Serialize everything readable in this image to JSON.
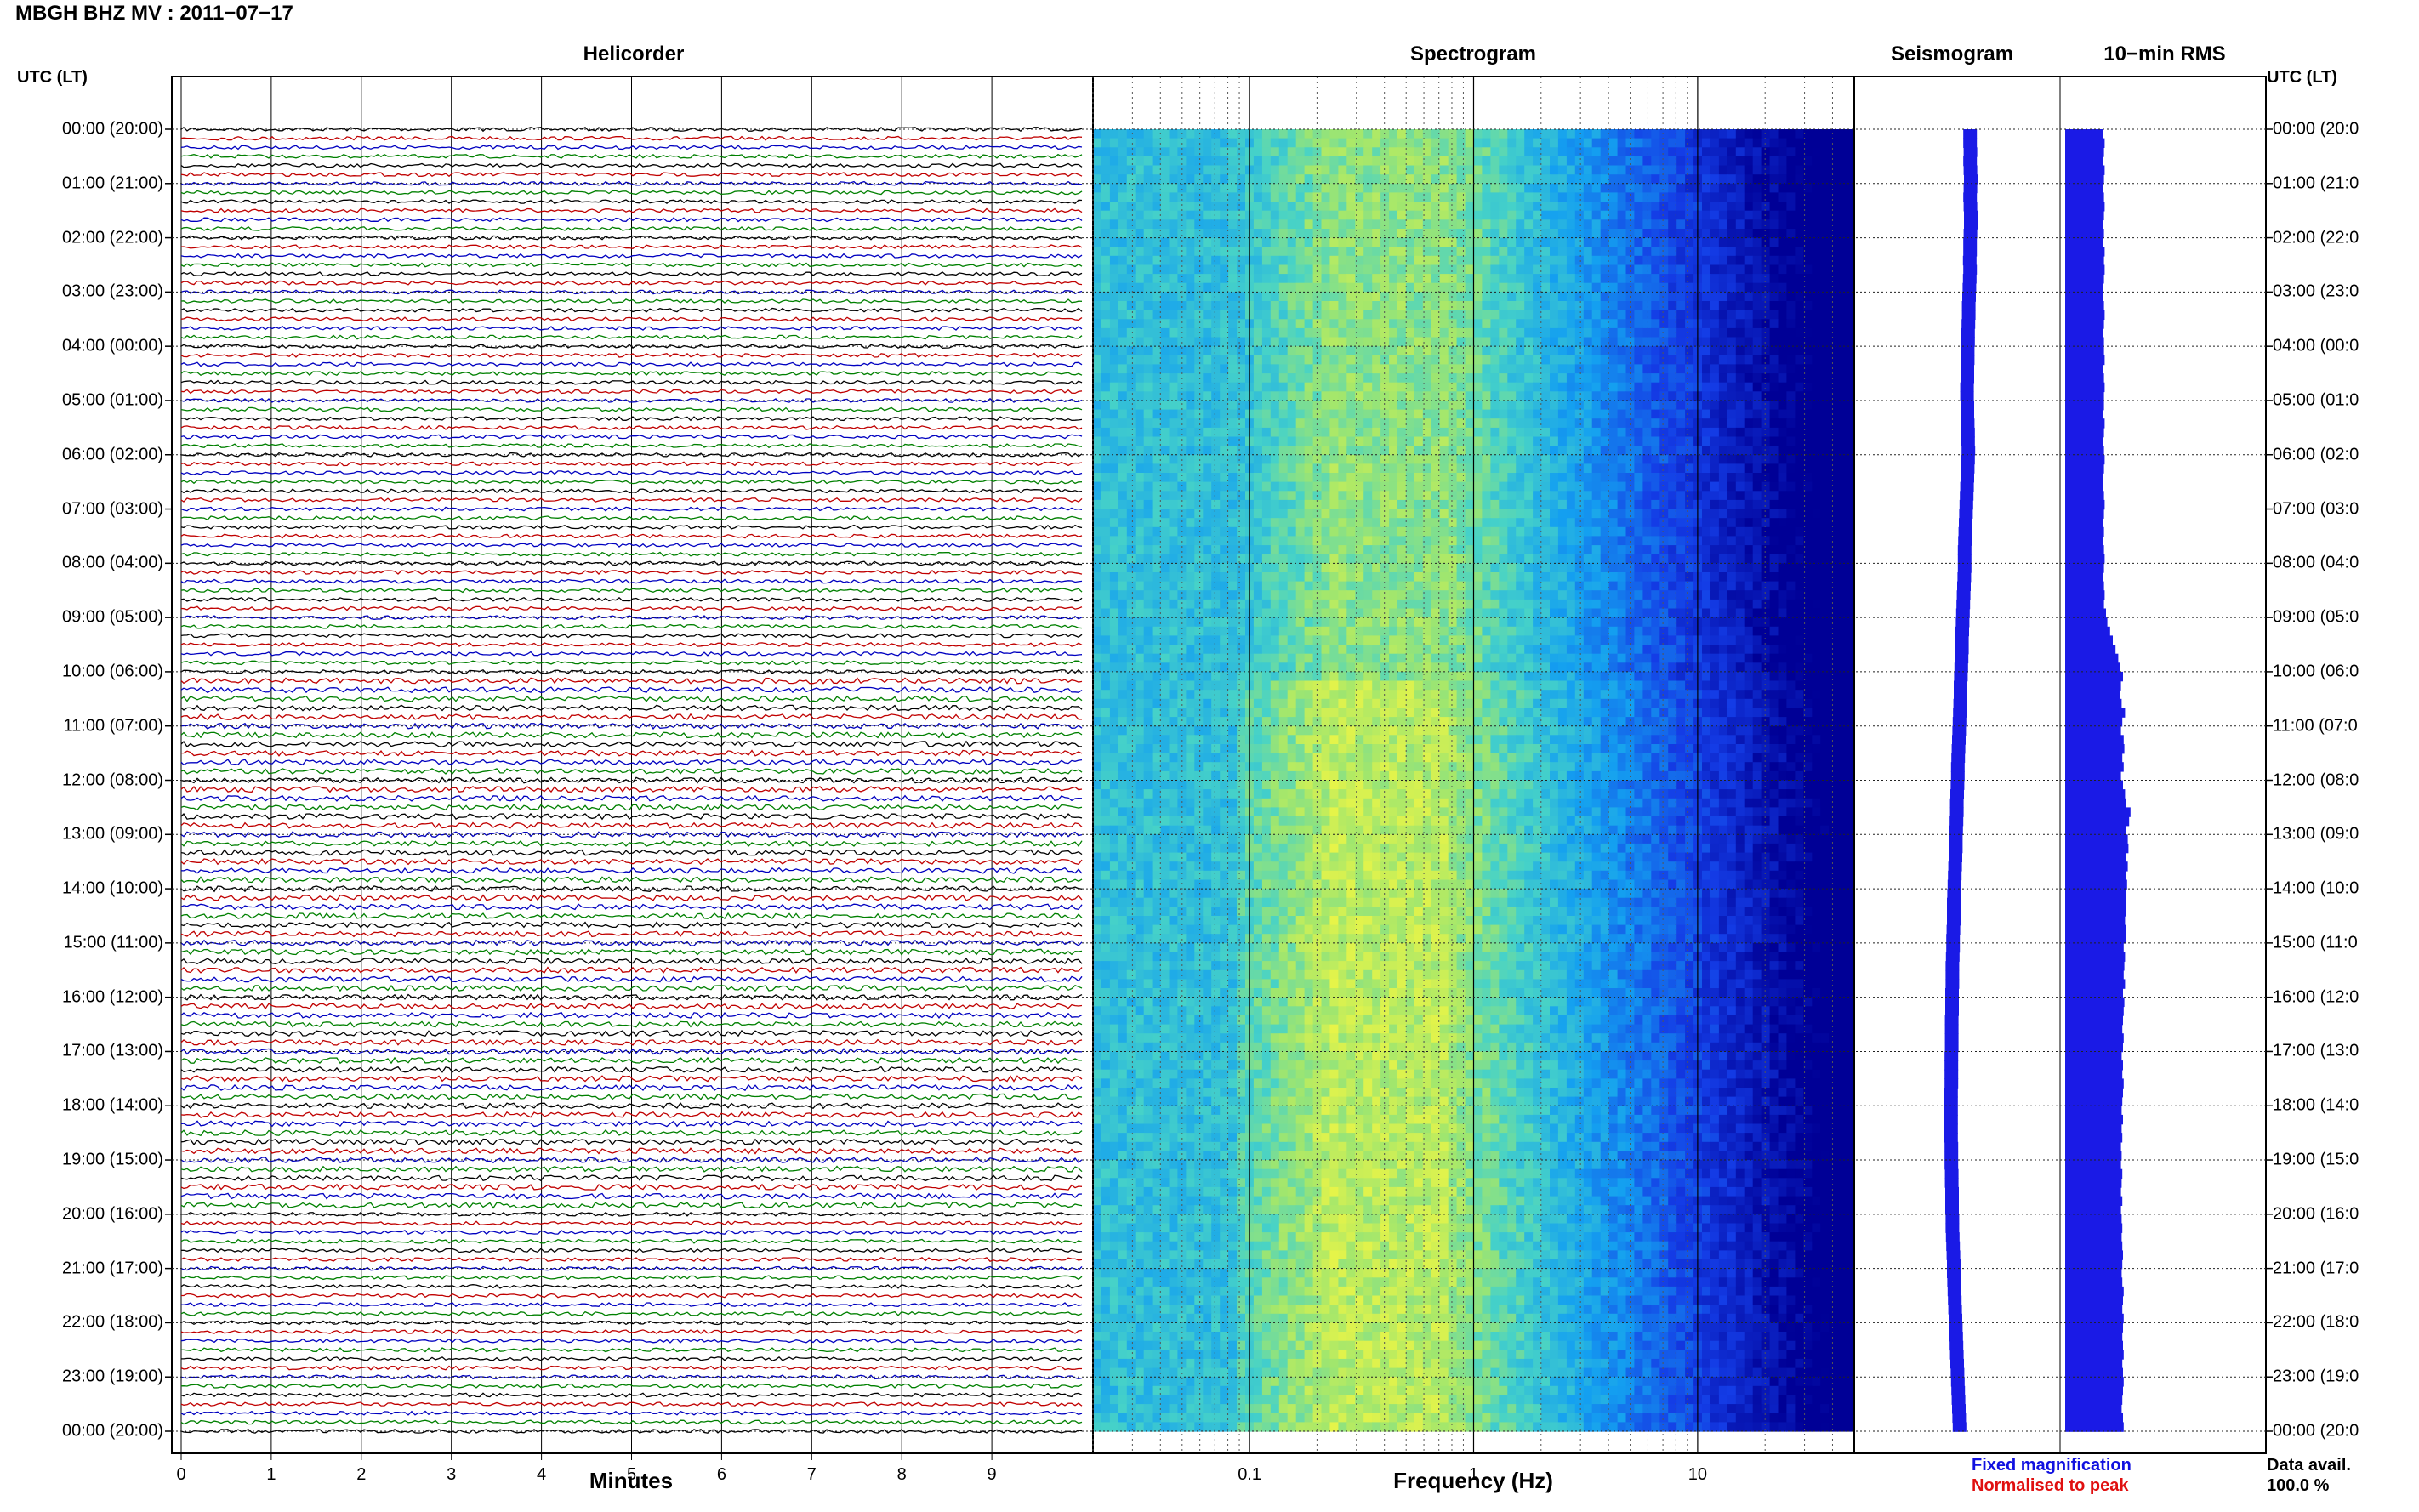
{
  "header": {
    "title": "MBGH BHZ MV : 2011−07−17"
  },
  "panels": {
    "helicorder": "Helicorder",
    "spectrogram": "Spectrogram",
    "seismogram": "Seismogram",
    "rms": "10−min RMS"
  },
  "time_axis": {
    "left_label": "UTC (LT)",
    "right_label": "UTC (LT)",
    "hours": [
      "00:00 (20:00)",
      "01:00 (21:00)",
      "02:00 (22:00)",
      "03:00 (23:00)",
      "04:00 (00:00)",
      "05:00 (01:00)",
      "06:00 (02:00)",
      "07:00 (03:00)",
      "08:00 (04:00)",
      "09:00 (05:00)",
      "10:00 (06:00)",
      "11:00 (07:00)",
      "12:00 (08:00)",
      "13:00 (09:00)",
      "14:00 (10:00)",
      "15:00 (11:00)",
      "16:00 (12:00)",
      "17:00 (13:00)",
      "18:00 (14:00)",
      "19:00 (15:00)",
      "20:00 (16:00)",
      "21:00 (17:00)",
      "22:00 (18:00)",
      "23:00 (19:00)",
      "00:00 (20:00)"
    ],
    "right_hours": [
      "00:00 (20:0",
      "01:00 (21:0",
      "02:00 (22:0",
      "03:00 (23:0",
      "04:00 (00:0",
      "05:00 (01:0",
      "06:00 (02:0",
      "07:00 (03:0",
      "08:00 (04:0",
      "09:00 (05:0",
      "10:00 (06:0",
      "11:00 (07:0",
      "12:00 (08:0",
      "13:00 (09:0",
      "14:00 (10:0",
      "15:00 (11:0",
      "16:00 (12:0",
      "17:00 (13:0",
      "18:00 (14:0",
      "19:00 (15:0",
      "20:00 (16:0",
      "21:00 (17:0",
      "22:00 (18:0",
      "23:00 (19:0",
      "00:00 (20:0"
    ]
  },
  "helicorder": {
    "xlabel": "Minutes",
    "xticks": [
      "0",
      "1",
      "2",
      "3",
      "4",
      "5",
      "6",
      "7",
      "8",
      "9"
    ],
    "trace_colors": [
      "#000000",
      "#c00000",
      "#0000c0",
      "#008000"
    ],
    "lines_per_hour": 6
  },
  "spectrogram": {
    "xlabel": "Frequency (Hz)",
    "xticks": [
      "0.1",
      "1",
      "10"
    ],
    "scale": "log",
    "xlim": [
      0.02,
      50
    ]
  },
  "legend": {
    "fixed": "Fixed magnification",
    "normalised": "Normalised to peak",
    "fixed_color": "#1010e0",
    "normalised_color": "#e01010"
  },
  "data_availability": {
    "label": "Data avail.",
    "value": "100.0 %"
  },
  "chart_data": {
    "type": "heatmap",
    "title": "MBGH BHZ MV : 2011−07−17",
    "rms_10min_relative": [
      0.55,
      0.58,
      0.57,
      0.56,
      0.58,
      0.57,
      0.56,
      0.57,
      0.58,
      0.57,
      0.56,
      0.57,
      0.56,
      0.58,
      0.57,
      0.58,
      0.57,
      0.56,
      0.56,
      0.57,
      0.58,
      0.57,
      0.56,
      0.57,
      0.57,
      0.58,
      0.56,
      0.57,
      0.58,
      0.57,
      0.57,
      0.56,
      0.58,
      0.57,
      0.56,
      0.57,
      0.58,
      0.57,
      0.56,
      0.56,
      0.57,
      0.58,
      0.57,
      0.56,
      0.57,
      0.56,
      0.57,
      0.58,
      0.57,
      0.56,
      0.57,
      0.58,
      0.57,
      0.6,
      0.62,
      0.66,
      0.7,
      0.74,
      0.78,
      0.8,
      0.85,
      0.82,
      0.8,
      0.83,
      0.88,
      0.84,
      0.82,
      0.86,
      0.87,
      0.84,
      0.86,
      0.82,
      0.85,
      0.88,
      0.9,
      0.96,
      0.94,
      0.9,
      0.92,
      0.93,
      0.9,
      0.92,
      0.9,
      0.91,
      0.9,
      0.89,
      0.9,
      0.88,
      0.9,
      0.89,
      0.86,
      0.88,
      0.87,
      0.86,
      0.88,
      0.85,
      0.87,
      0.86,
      0.85,
      0.84,
      0.86,
      0.85,
      0.83,
      0.85,
      0.84,
      0.86,
      0.85,
      0.84,
      0.83,
      0.85,
      0.83,
      0.84,
      0.82,
      0.83,
      0.82,
      0.84,
      0.83,
      0.82,
      0.84,
      0.82,
      0.83,
      0.84,
      0.83,
      0.84,
      0.85,
      0.84,
      0.83,
      0.84,
      0.86,
      0.85,
      0.84,
      0.86,
      0.85,
      0.84,
      0.85,
      0.86,
      0.84,
      0.85,
      0.86,
      0.85,
      0.84,
      0.83,
      0.85,
      0.86
    ],
    "seismogram_offset": [
      0.78,
      0.78,
      0.79,
      0.78,
      0.79,
      0.8,
      0.79,
      0.78,
      0.79,
      0.8,
      0.8,
      0.79,
      0.78,
      0.78,
      0.77,
      0.78,
      0.77,
      0.76,
      0.75,
      0.74,
      0.74,
      0.73,
      0.72,
      0.72,
      0.71,
      0.71,
      0.7,
      0.7,
      0.69,
      0.69,
      0.7,
      0.7,
      0.71,
      0.72,
      0.72,
      0.73,
      0.72,
      0.71,
      0.7,
      0.69,
      0.68,
      0.67,
      0.66,
      0.65,
      0.64,
      0.63,
      0.62,
      0.62,
      0.62,
      0.61,
      0.6,
      0.59,
      0.58,
      0.57,
      0.56,
      0.55,
      0.54,
      0.54,
      0.53,
      0.52,
      0.51,
      0.5,
      0.5,
      0.49,
      0.48,
      0.47,
      0.46,
      0.45,
      0.44,
      0.43,
      0.42,
      0.42,
      0.41,
      0.4,
      0.39,
      0.39,
      0.38,
      0.37,
      0.36,
      0.36,
      0.35,
      0.34,
      0.33,
      0.32,
      0.31,
      0.3,
      0.3,
      0.3,
      0.29,
      0.28,
      0.28,
      0.27,
      0.26,
      0.26,
      0.26,
      0.25,
      0.25,
      0.25,
      0.24,
      0.24,
      0.24,
      0.24,
      0.23,
      0.23,
      0.23,
      0.23,
      0.22,
      0.22,
      0.22,
      0.22,
      0.22,
      0.22,
      0.23,
      0.23,
      0.23,
      0.24,
      0.24,
      0.25,
      0.25,
      0.25,
      0.26,
      0.26,
      0.27,
      0.28,
      0.29,
      0.3,
      0.3,
      0.31,
      0.32,
      0.33,
      0.34,
      0.35,
      0.36,
      0.37,
      0.38,
      0.39,
      0.4,
      0.41,
      0.42,
      0.43,
      0.44,
      0.45,
      0.46,
      0.47
    ]
  }
}
